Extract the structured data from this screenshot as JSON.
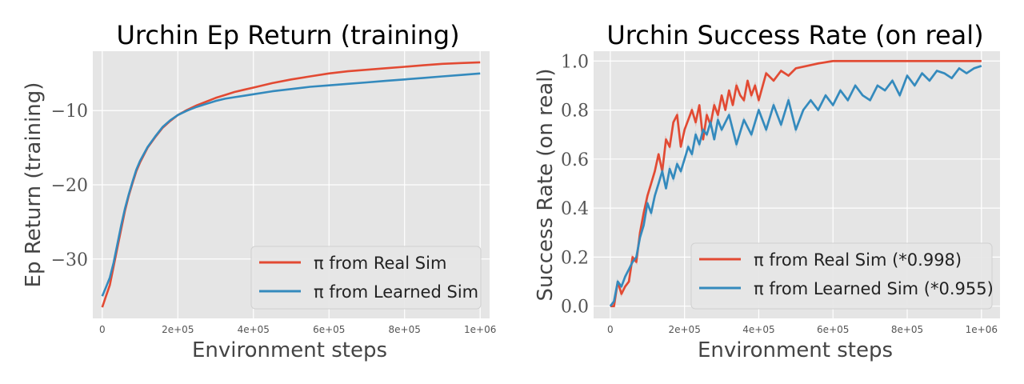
{
  "chart_data": [
    {
      "type": "line",
      "title": "Urchin Ep Return (training)",
      "xlabel": "Environment steps",
      "ylabel": "Ep Return (training)",
      "xlim": [
        -25000,
        1025000
      ],
      "ylim": [
        -38,
        -2
      ],
      "xticks": [
        0,
        200000,
        400000,
        600000,
        800000,
        1000000
      ],
      "xtick_labels": [
        "0",
        "2e+05",
        "4e+05",
        "6e+05",
        "8e+05",
        "1e+06"
      ],
      "yticks": [
        -30,
        -20,
        -10
      ],
      "ytick_labels": [
        "−30",
        "−20",
        "−10"
      ],
      "grid": true,
      "legend_position": "lower-right",
      "series": [
        {
          "name": "π from Real Sim",
          "color": "#E24A33",
          "x": [
            0,
            10000,
            20000,
            30000,
            40000,
            50000,
            60000,
            70000,
            80000,
            90000,
            100000,
            120000,
            140000,
            160000,
            180000,
            200000,
            225000,
            250000,
            275000,
            300000,
            325000,
            350000,
            375000,
            400000,
            450000,
            500000,
            550000,
            600000,
            650000,
            700000,
            750000,
            800000,
            850000,
            900000,
            950000,
            1000000
          ],
          "y": [
            -36.5,
            -35.0,
            -33.5,
            -31.0,
            -28.5,
            -26.0,
            -23.5,
            -21.5,
            -19.8,
            -18.2,
            -17.0,
            -15.0,
            -13.6,
            -12.3,
            -11.4,
            -10.6,
            -9.9,
            -9.3,
            -8.8,
            -8.3,
            -7.9,
            -7.5,
            -7.2,
            -6.9,
            -6.3,
            -5.8,
            -5.4,
            -5.0,
            -4.7,
            -4.5,
            -4.3,
            -4.1,
            -3.9,
            -3.7,
            -3.6,
            -3.5
          ]
        },
        {
          "name": "π from Learned Sim",
          "color": "#348ABD",
          "x": [
            0,
            10000,
            20000,
            30000,
            40000,
            50000,
            60000,
            70000,
            80000,
            90000,
            100000,
            120000,
            140000,
            160000,
            180000,
            200000,
            225000,
            250000,
            275000,
            300000,
            325000,
            350000,
            375000,
            400000,
            450000,
            500000,
            550000,
            600000,
            650000,
            700000,
            750000,
            800000,
            850000,
            900000,
            950000,
            1000000
          ],
          "y": [
            -35.0,
            -33.8,
            -32.5,
            -30.5,
            -28.0,
            -25.5,
            -23.2,
            -21.3,
            -19.6,
            -18.0,
            -16.8,
            -14.9,
            -13.5,
            -12.2,
            -11.3,
            -10.6,
            -10.0,
            -9.5,
            -9.1,
            -8.7,
            -8.4,
            -8.2,
            -8.0,
            -7.8,
            -7.4,
            -7.1,
            -6.8,
            -6.6,
            -6.4,
            -6.2,
            -6.0,
            -5.8,
            -5.6,
            -5.4,
            -5.2,
            -5.0
          ]
        }
      ]
    },
    {
      "type": "line",
      "title": "Urchin Success Rate (on real)",
      "xlabel": "Environment steps",
      "ylabel": "Success Rate (on real)",
      "xlim": [
        -45000,
        1050000
      ],
      "ylim": [
        -0.05,
        1.04
      ],
      "xticks": [
        0,
        200000,
        400000,
        600000,
        800000,
        1000000
      ],
      "xtick_labels": [
        "0",
        "2e+05",
        "4e+05",
        "6e+05",
        "8e+05",
        "1e+06"
      ],
      "yticks": [
        0.0,
        0.2,
        0.4,
        0.6,
        0.8,
        1.0
      ],
      "ytick_labels": [
        "0.0",
        "0.2",
        "0.4",
        "0.6",
        "0.8",
        "1.0"
      ],
      "grid": true,
      "legend_position": "lower-right",
      "series": [
        {
          "name": "π from Real Sim (*0.998)",
          "color": "#E24A33",
          "x": [
            0,
            10000,
            20000,
            30000,
            40000,
            50000,
            60000,
            70000,
            80000,
            90000,
            100000,
            110000,
            120000,
            130000,
            140000,
            150000,
            160000,
            170000,
            180000,
            190000,
            200000,
            210000,
            220000,
            230000,
            240000,
            250000,
            260000,
            270000,
            280000,
            290000,
            300000,
            310000,
            320000,
            330000,
            340000,
            350000,
            360000,
            370000,
            380000,
            390000,
            400000,
            420000,
            440000,
            460000,
            480000,
            500000,
            530000,
            560000,
            600000,
            650000,
            700000,
            750000,
            800000,
            850000,
            900000,
            950000,
            1000000
          ],
          "y": [
            0.0,
            0.0,
            0.1,
            0.05,
            0.08,
            0.1,
            0.2,
            0.18,
            0.3,
            0.38,
            0.45,
            0.5,
            0.55,
            0.62,
            0.55,
            0.68,
            0.65,
            0.75,
            0.78,
            0.65,
            0.72,
            0.76,
            0.8,
            0.75,
            0.82,
            0.68,
            0.78,
            0.74,
            0.82,
            0.78,
            0.86,
            0.8,
            0.88,
            0.82,
            0.9,
            0.86,
            0.84,
            0.92,
            0.86,
            0.9,
            0.84,
            0.95,
            0.92,
            0.96,
            0.94,
            0.97,
            0.98,
            0.99,
            1.0,
            1.0,
            1.0,
            1.0,
            1.0,
            1.0,
            1.0,
            1.0,
            1.0
          ]
        },
        {
          "name": "π from Learned Sim (*0.955)",
          "color": "#348ABD",
          "x": [
            0,
            10000,
            20000,
            30000,
            40000,
            50000,
            60000,
            70000,
            80000,
            90000,
            100000,
            110000,
            120000,
            130000,
            140000,
            150000,
            160000,
            170000,
            180000,
            190000,
            200000,
            210000,
            220000,
            230000,
            240000,
            250000,
            260000,
            270000,
            280000,
            290000,
            300000,
            320000,
            340000,
            360000,
            380000,
            400000,
            420000,
            440000,
            460000,
            480000,
            500000,
            520000,
            540000,
            560000,
            580000,
            600000,
            620000,
            640000,
            660000,
            680000,
            700000,
            720000,
            740000,
            760000,
            780000,
            800000,
            820000,
            840000,
            860000,
            880000,
            900000,
            920000,
            940000,
            960000,
            980000,
            1000000
          ],
          "y": [
            0.0,
            0.02,
            0.1,
            0.08,
            0.12,
            0.15,
            0.18,
            0.2,
            0.28,
            0.33,
            0.42,
            0.38,
            0.45,
            0.5,
            0.55,
            0.48,
            0.56,
            0.52,
            0.58,
            0.55,
            0.6,
            0.65,
            0.62,
            0.7,
            0.66,
            0.72,
            0.7,
            0.75,
            0.68,
            0.76,
            0.72,
            0.78,
            0.66,
            0.76,
            0.7,
            0.8,
            0.72,
            0.82,
            0.74,
            0.84,
            0.72,
            0.8,
            0.84,
            0.8,
            0.86,
            0.82,
            0.88,
            0.84,
            0.9,
            0.86,
            0.84,
            0.9,
            0.88,
            0.92,
            0.86,
            0.94,
            0.9,
            0.95,
            0.92,
            0.96,
            0.95,
            0.93,
            0.97,
            0.95,
            0.97,
            0.98
          ]
        }
      ]
    }
  ]
}
